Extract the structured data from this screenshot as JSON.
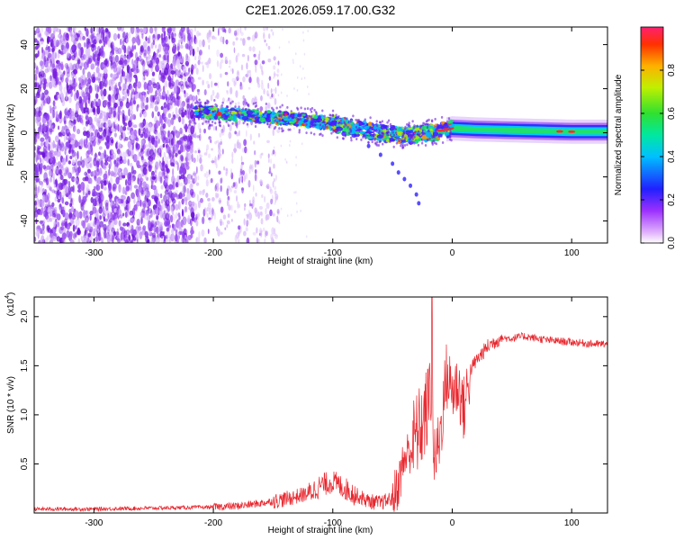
{
  "title": "C2E1.2026.059.17.00.G32",
  "chart_data": [
    {
      "type": "heatmap",
      "panel": "top",
      "xlabel": "Height of straight line (km)",
      "ylabel": "Frequency (Hz)",
      "xlim": [
        -350,
        130
      ],
      "ylim": [
        -50,
        48
      ],
      "xticks": [
        -300,
        -200,
        -100,
        0,
        100
      ],
      "xtick_labels": [
        "-300",
        "-200",
        "-100",
        "0",
        "100"
      ],
      "yticks": [
        -40,
        -20,
        0,
        20,
        40
      ],
      "ytick_labels": [
        "-40",
        "-20",
        "0",
        "20",
        "40"
      ],
      "colorbar": {
        "label": "Normalized spectral amplitude",
        "range": [
          0,
          1
        ],
        "ticks": [
          0.0,
          0.2,
          0.4,
          0.6,
          0.8
        ],
        "tick_labels": [
          "0.0",
          "0.2",
          "0.4",
          "0.6",
          "0.8"
        ]
      },
      "signal_track": {
        "x": [
          -215,
          -200,
          -180,
          -160,
          -140,
          -120,
          -100,
          -80,
          -60,
          -40,
          -20,
          0,
          20,
          60,
          100,
          130
        ],
        "freq": [
          10,
          9,
          8,
          7.5,
          6.5,
          5.5,
          4,
          2,
          0,
          -1,
          0,
          2,
          1.5,
          1,
          0.5,
          0.5
        ]
      },
      "noise_region_x": [
        -350,
        -215
      ],
      "tail_points": {
        "x": [
          -70,
          -60,
          -50,
          -45,
          -40,
          -35,
          -30,
          -28
        ],
        "freq": [
          -6,
          -10,
          -14,
          -18,
          -21,
          -24,
          -28,
          -32
        ]
      }
    },
    {
      "type": "line",
      "panel": "bottom",
      "xlabel": "Height of straight line (km)",
      "ylabel": "SNR (10 * v/v)",
      "y_multiplier": "(x10",
      "y_multiplier_exp": "4",
      "y_multiplier_close": ")",
      "xlim": [
        -350,
        130
      ],
      "ylim": [
        0,
        2.2
      ],
      "xticks": [
        -300,
        -200,
        -100,
        0,
        100
      ],
      "xtick_labels": [
        "-300",
        "-200",
        "-100",
        "0",
        "100"
      ],
      "yticks": [
        0.5,
        1.0,
        1.5,
        2.0
      ],
      "ytick_labels": [
        "0.5",
        "1.0",
        "1.5",
        "2.0"
      ],
      "color": "#e8262d",
      "series": [
        {
          "name": "SNR",
          "x": [
            -350,
            -300,
            -250,
            -200,
            -180,
            -160,
            -140,
            -120,
            -110,
            -100,
            -90,
            -80,
            -70,
            -60,
            -50,
            -45,
            -40,
            -35,
            -30,
            -25,
            -20,
            -17,
            -15,
            -10,
            -5,
            0,
            5,
            10,
            15,
            20,
            30,
            40,
            50,
            60,
            80,
            100,
            120,
            130
          ],
          "y": [
            0.04,
            0.04,
            0.05,
            0.06,
            0.07,
            0.1,
            0.14,
            0.2,
            0.28,
            0.32,
            0.25,
            0.18,
            0.12,
            0.1,
            0.15,
            0.3,
            0.55,
            0.65,
            0.8,
            0.9,
            1.1,
            1.4,
            0.5,
            0.8,
            1.4,
            1.25,
            1.3,
            1.05,
            1.45,
            1.55,
            1.7,
            1.78,
            1.78,
            1.8,
            1.76,
            1.74,
            1.72,
            1.72
          ]
        }
      ],
      "noise_amplitude": [
        {
          "x0": -350,
          "x1": -200,
          "amp": 0.02
        },
        {
          "x0": -200,
          "x1": -150,
          "amp": 0.04
        },
        {
          "x0": -150,
          "x1": -120,
          "amp": 0.08
        },
        {
          "x0": -120,
          "x1": -80,
          "amp": 0.12
        },
        {
          "x0": -80,
          "x1": -50,
          "amp": 0.08
        },
        {
          "x0": -50,
          "x1": -35,
          "amp": 0.25
        },
        {
          "x0": -35,
          "x1": -15,
          "amp": 0.45
        },
        {
          "x0": -15,
          "x1": 15,
          "amp": 0.35
        },
        {
          "x0": 15,
          "x1": 40,
          "amp": 0.08
        },
        {
          "x0": 40,
          "x1": 130,
          "amp": 0.04
        }
      ],
      "spike": {
        "x": -17,
        "y": 2.2
      }
    }
  ]
}
